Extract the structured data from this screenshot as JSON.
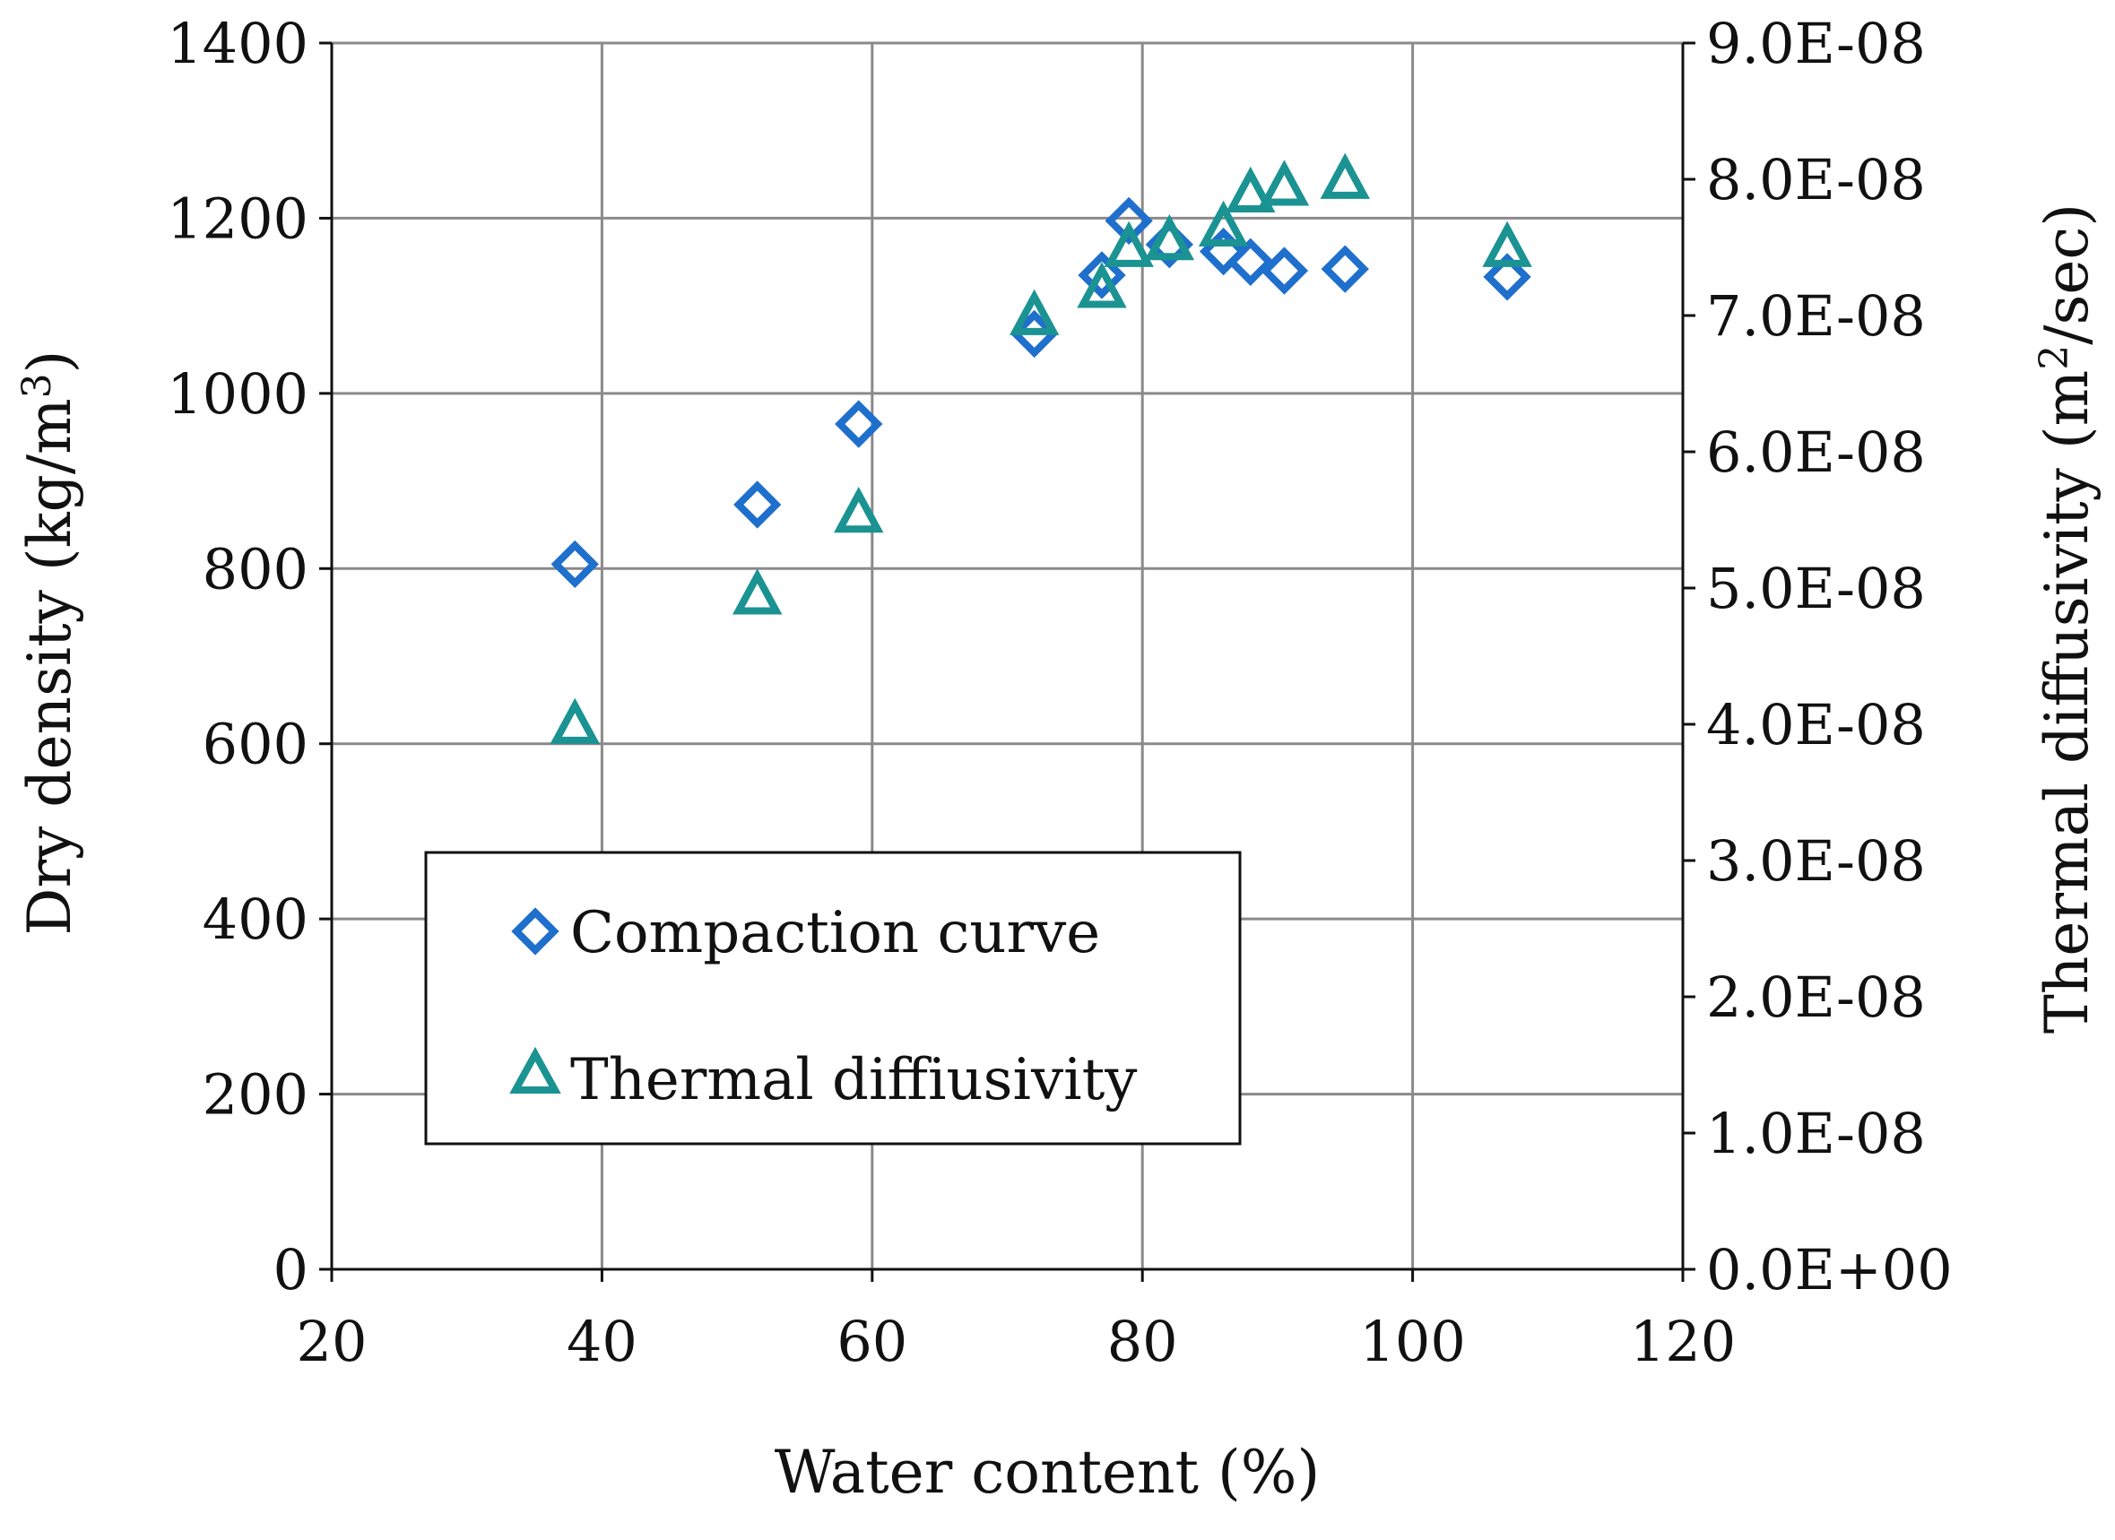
{
  "chart_data": {
    "type": "scatter",
    "title": "",
    "xlabel": "Water content (%)",
    "ylabel_left_prefix": "Dry density (kg/m",
    "ylabel_left_sup": "3",
    "ylabel_left_suffix": ")",
    "ylabel_right_prefix": "Thermal diffusivity (m",
    "ylabel_right_sup": "2",
    "ylabel_right_suffix": "/sec)",
    "xlim": [
      20,
      120
    ],
    "ylim_left": [
      0,
      1400
    ],
    "ylim_right": [
      0,
      9e-08
    ],
    "x_ticks": [
      20,
      40,
      60,
      80,
      100,
      120
    ],
    "x_tick_labels": [
      "20",
      "40",
      "60",
      "80",
      "100",
      "120"
    ],
    "y_left_ticks": [
      0,
      200,
      400,
      600,
      800,
      1000,
      1200,
      1400
    ],
    "y_left_tick_labels": [
      "0",
      "200",
      "400",
      "600",
      "800",
      "1000",
      "1200",
      "1400"
    ],
    "y_right_ticks": [
      0,
      1e-08,
      2e-08,
      3e-08,
      4e-08,
      5e-08,
      6e-08,
      7e-08,
      8e-08,
      9e-08
    ],
    "y_right_tick_labels": [
      "0.0E+00",
      "1.0E-08",
      "2.0E-08",
      "3.0E-08",
      "4.0E-08",
      "5.0E-08",
      "6.0E-08",
      "7.0E-08",
      "8.0E-08",
      "9.0E-08"
    ],
    "grid": true,
    "legend_position": "lower-left",
    "series": [
      {
        "name": "Compaction curve",
        "axis": "left",
        "marker": "diamond",
        "color": "#1f6fcc",
        "points": [
          {
            "x": 38,
            "y": 805
          },
          {
            "x": 51.5,
            "y": 873
          },
          {
            "x": 59,
            "y": 965
          },
          {
            "x": 72,
            "y": 1068
          },
          {
            "x": 77,
            "y": 1135
          },
          {
            "x": 79,
            "y": 1197
          },
          {
            "x": 82,
            "y": 1170
          },
          {
            "x": 86,
            "y": 1162
          },
          {
            "x": 88,
            "y": 1150
          },
          {
            "x": 90.5,
            "y": 1140
          },
          {
            "x": 95,
            "y": 1142
          },
          {
            "x": 107,
            "y": 1133
          }
        ]
      },
      {
        "name": "Thermal diffiusivity",
        "axis": "right",
        "marker": "triangle",
        "color": "#1a9392",
        "points": [
          {
            "x": 38,
            "y": 4e-08
          },
          {
            "x": 51.5,
            "y": 4.95e-08
          },
          {
            "x": 59,
            "y": 5.55e-08
          },
          {
            "x": 72,
            "y": 7e-08
          },
          {
            "x": 77,
            "y": 7.2e-08
          },
          {
            "x": 79,
            "y": 7.5e-08
          },
          {
            "x": 82,
            "y": 7.55e-08
          },
          {
            "x": 86,
            "y": 7.65e-08
          },
          {
            "x": 88,
            "y": 7.9e-08
          },
          {
            "x": 90.5,
            "y": 7.95e-08
          },
          {
            "x": 95,
            "y": 8e-08
          },
          {
            "x": 107,
            "y": 7.5e-08
          }
        ]
      }
    ]
  }
}
